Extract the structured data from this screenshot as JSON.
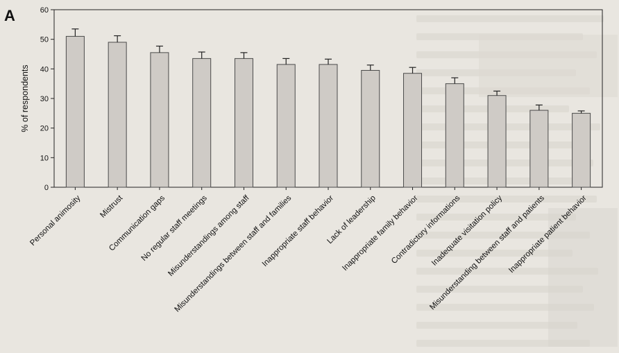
{
  "panel_label": "A",
  "chart_data": {
    "type": "bar",
    "title": "",
    "xlabel": "",
    "ylabel": "% of respondents",
    "ylim": [
      0,
      60
    ],
    "yticks": [
      0,
      10,
      20,
      30,
      40,
      50,
      60
    ],
    "grid": false,
    "error_bars": true,
    "categories": [
      "Personal animosity",
      "Mistrust",
      "Communication gaps",
      "No regular staff meetings",
      "Misunderstandings among staff",
      "Misunderstandings between staff and families",
      "Inappropriate staff behavior",
      "Lack of leadership",
      "Inappropriate family behavior",
      "Contradictory informations",
      "Inadequate visitation policy",
      "Misunderstanding between staff and patients",
      "Inappropriate patient behavior"
    ],
    "values": [
      51,
      49,
      45.5,
      43.5,
      43.5,
      41.5,
      41.5,
      39.5,
      38.5,
      35,
      31,
      26,
      25
    ],
    "errors": [
      2.5,
      2.2,
      2.2,
      2.2,
      2.0,
      2.0,
      1.8,
      1.8,
      2.0,
      2.0,
      1.5,
      1.8,
      0.8
    ],
    "colors": {
      "bar_fill": "#cfcbc6",
      "bar_stroke": "#4a4a4a",
      "axis": "#222222"
    }
  }
}
